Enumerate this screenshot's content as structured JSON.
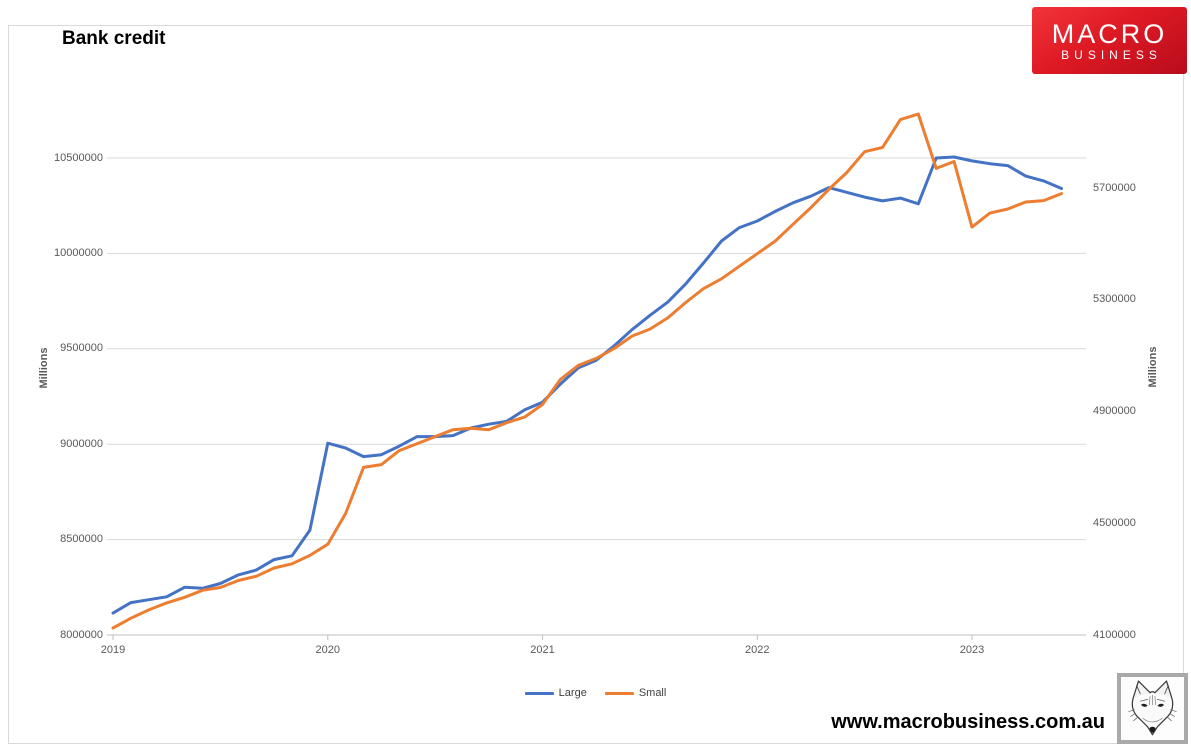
{
  "title": "Bank credit",
  "logo": {
    "line1": "MACRO",
    "line2": "BUSINESS",
    "bg_color": "#d7141f",
    "text_color": "#ffffff"
  },
  "footer": {
    "website": "www.macrobusiness.com.au"
  },
  "legend": {
    "items": [
      {
        "label": "Large",
        "color": "#4472C4"
      },
      {
        "label": "Small",
        "color": "#ED7D31"
      }
    ]
  },
  "axes": {
    "left": {
      "title": "Millions",
      "tick_labels": [
        "8000000",
        "8500000",
        "9000000",
        "9500000",
        "10000000",
        "10500000"
      ]
    },
    "right": {
      "title": "Millions",
      "tick_labels": [
        "4100000",
        "4500000",
        "4900000",
        "5300000",
        "5700000"
      ]
    },
    "x": {
      "tick_labels": [
        "2019",
        "2020",
        "2021",
        "2022",
        "2023"
      ]
    }
  },
  "chart_data": {
    "type": "line",
    "title": "Bank credit",
    "x_unit": "month",
    "grid": true,
    "legend_position": "bottom",
    "axis_titles": {
      "left": "Millions",
      "right": "Millions"
    },
    "left_ylim": [
      8000000,
      10500000
    ],
    "right_ylim": [
      4100000,
      5700000
    ],
    "left_yticks": [
      8000000,
      8500000,
      9000000,
      9500000,
      10000000,
      10500000
    ],
    "right_yticks": [
      4100000,
      4500000,
      4900000,
      5300000,
      5700000
    ],
    "x_ticks_years": [
      "2019",
      "2020",
      "2021",
      "2022",
      "2023"
    ],
    "months": [
      "2019-01",
      "2019-02",
      "2019-03",
      "2019-04",
      "2019-05",
      "2019-06",
      "2019-07",
      "2019-08",
      "2019-09",
      "2019-10",
      "2019-11",
      "2019-12",
      "2020-01",
      "2020-02",
      "2020-03",
      "2020-04",
      "2020-05",
      "2020-06",
      "2020-07",
      "2020-08",
      "2020-09",
      "2020-10",
      "2020-11",
      "2020-12",
      "2021-01",
      "2021-02",
      "2021-03",
      "2021-04",
      "2021-05",
      "2021-06",
      "2021-07",
      "2021-08",
      "2021-09",
      "2021-10",
      "2021-11",
      "2021-12",
      "2022-01",
      "2022-02",
      "2022-03",
      "2022-04",
      "2022-05",
      "2022-06",
      "2022-07",
      "2022-08",
      "2022-09",
      "2022-10",
      "2022-11",
      "2022-12",
      "2023-01",
      "2023-02",
      "2023-03",
      "2023-04",
      "2023-05",
      "2023-06"
    ],
    "series": [
      {
        "name": "Large",
        "axis": "left",
        "color": "#4472C4",
        "values": [
          8115000,
          8170000,
          8185000,
          8200000,
          8250000,
          8245000,
          8270000,
          8315000,
          8340000,
          8395000,
          8415000,
          8550000,
          9005000,
          8980000,
          8935000,
          8945000,
          8990000,
          9040000,
          9040000,
          9045000,
          9085000,
          9105000,
          9120000,
          9180000,
          9220000,
          9315000,
          9400000,
          9440000,
          9515000,
          9600000,
          9675000,
          9745000,
          9840000,
          9950000,
          10065000,
          10135000,
          10170000,
          10220000,
          10265000,
          10300000,
          10345000,
          10320000,
          10295000,
          10275000,
          10290000,
          10260000,
          10500000,
          10505000,
          10485000,
          10470000,
          10460000,
          10405000,
          10380000,
          10340000
        ]
      },
      {
        "name": "Small",
        "axis": "right",
        "color": "#ED7D31",
        "values": [
          4125000,
          4160000,
          4190000,
          4215000,
          4235000,
          4260000,
          4270000,
          4295000,
          4310000,
          4340000,
          4355000,
          4385000,
          4425000,
          4535000,
          4700000,
          4710000,
          4760000,
          4785000,
          4810000,
          4835000,
          4840000,
          4835000,
          4860000,
          4880000,
          4925000,
          5015000,
          5065000,
          5090000,
          5125000,
          5170000,
          5195000,
          5235000,
          5290000,
          5340000,
          5375000,
          5420000,
          5465000,
          5510000,
          5570000,
          5630000,
          5695000,
          5755000,
          5830000,
          5845000,
          5945000,
          5965000,
          5770000,
          5795000,
          5560000,
          5610000,
          5625000,
          5650000,
          5655000,
          5680000
        ]
      }
    ]
  }
}
